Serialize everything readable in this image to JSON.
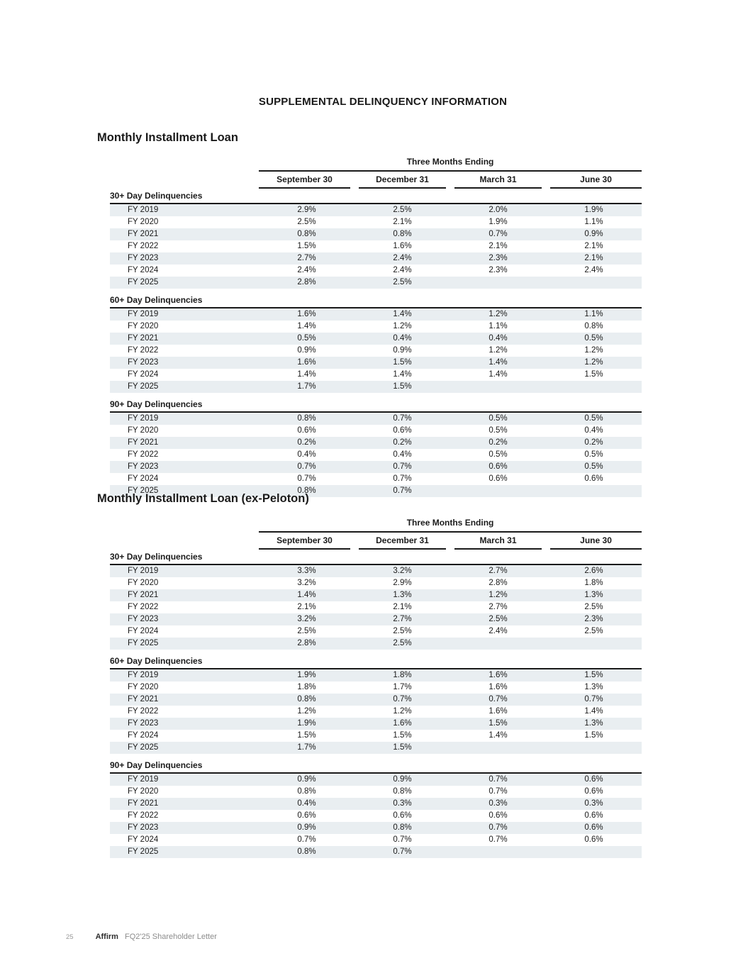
{
  "page": {
    "title": "SUPPLEMENTAL DELINQUENCY INFORMATION"
  },
  "footer": {
    "page_number": "25",
    "brand": "Affirm",
    "document_title": "FQ2'25 Shareholder Letter"
  },
  "columns_header": {
    "group_label": "Three Months Ending",
    "columns": [
      "September 30",
      "December 31",
      "March 31",
      "June 30"
    ]
  },
  "sections": [
    {
      "title": "Monthly Installment Loan",
      "subsections": [
        {
          "label": "30+ Day Delinquencies",
          "rows": [
            {
              "label": "FY 2019",
              "values": [
                "2.9%",
                "2.5%",
                "2.0%",
                "1.9%"
              ]
            },
            {
              "label": "FY 2020",
              "values": [
                "2.5%",
                "2.1%",
                "1.9%",
                "1.1%"
              ]
            },
            {
              "label": "FY 2021",
              "values": [
                "0.8%",
                "0.8%",
                "0.7%",
                "0.9%"
              ]
            },
            {
              "label": "FY 2022",
              "values": [
                "1.5%",
                "1.6%",
                "2.1%",
                "2.1%"
              ]
            },
            {
              "label": "FY 2023",
              "values": [
                "2.7%",
                "2.4%",
                "2.3%",
                "2.1%"
              ]
            },
            {
              "label": "FY 2024",
              "values": [
                "2.4%",
                "2.4%",
                "2.3%",
                "2.4%"
              ]
            },
            {
              "label": "FY 2025",
              "values": [
                "2.8%",
                "2.5%",
                "",
                ""
              ]
            }
          ]
        },
        {
          "label": "60+ Day Delinquencies",
          "rows": [
            {
              "label": "FY 2019",
              "values": [
                "1.6%",
                "1.4%",
                "1.2%",
                "1.1%"
              ]
            },
            {
              "label": "FY 2020",
              "values": [
                "1.4%",
                "1.2%",
                "1.1%",
                "0.8%"
              ]
            },
            {
              "label": "FY 2021",
              "values": [
                "0.5%",
                "0.4%",
                "0.4%",
                "0.5%"
              ]
            },
            {
              "label": "FY 2022",
              "values": [
                "0.9%",
                "0.9%",
                "1.2%",
                "1.2%"
              ]
            },
            {
              "label": "FY 2023",
              "values": [
                "1.6%",
                "1.5%",
                "1.4%",
                "1.2%"
              ]
            },
            {
              "label": "FY 2024",
              "values": [
                "1.4%",
                "1.4%",
                "1.4%",
                "1.5%"
              ]
            },
            {
              "label": "FY 2025",
              "values": [
                "1.7%",
                "1.5%",
                "",
                ""
              ]
            }
          ]
        },
        {
          "label": "90+ Day Delinquencies",
          "rows": [
            {
              "label": "FY 2019",
              "values": [
                "0.8%",
                "0.7%",
                "0.5%",
                "0.5%"
              ]
            },
            {
              "label": "FY 2020",
              "values": [
                "0.6%",
                "0.6%",
                "0.5%",
                "0.4%"
              ]
            },
            {
              "label": "FY 2021",
              "values": [
                "0.2%",
                "0.2%",
                "0.2%",
                "0.2%"
              ]
            },
            {
              "label": "FY 2022",
              "values": [
                "0.4%",
                "0.4%",
                "0.5%",
                "0.5%"
              ]
            },
            {
              "label": "FY 2023",
              "values": [
                "0.7%",
                "0.7%",
                "0.6%",
                "0.5%"
              ]
            },
            {
              "label": "FY 2024",
              "values": [
                "0.7%",
                "0.7%",
                "0.6%",
                "0.6%"
              ]
            },
            {
              "label": "FY 2025",
              "values": [
                "0.8%",
                "0.7%",
                "",
                ""
              ]
            }
          ]
        }
      ]
    },
    {
      "title": "Monthly Installment Loan (ex-Peloton)",
      "subsections": [
        {
          "label": "30+ Day Delinquencies",
          "rows": [
            {
              "label": "FY 2019",
              "values": [
                "3.3%",
                "3.2%",
                "2.7%",
                "2.6%"
              ]
            },
            {
              "label": "FY 2020",
              "values": [
                "3.2%",
                "2.9%",
                "2.8%",
                "1.8%"
              ]
            },
            {
              "label": "FY 2021",
              "values": [
                "1.4%",
                "1.3%",
                "1.2%",
                "1.3%"
              ]
            },
            {
              "label": "FY 2022",
              "values": [
                "2.1%",
                "2.1%",
                "2.7%",
                "2.5%"
              ]
            },
            {
              "label": "FY 2023",
              "values": [
                "3.2%",
                "2.7%",
                "2.5%",
                "2.3%"
              ]
            },
            {
              "label": "FY 2024",
              "values": [
                "2.5%",
                "2.5%",
                "2.4%",
                "2.5%"
              ]
            },
            {
              "label": "FY 2025",
              "values": [
                "2.8%",
                "2.5%",
                "",
                ""
              ]
            }
          ]
        },
        {
          "label": "60+ Day Delinquencies",
          "rows": [
            {
              "label": "FY 2019",
              "values": [
                "1.9%",
                "1.8%",
                "1.6%",
                "1.5%"
              ]
            },
            {
              "label": "FY 2020",
              "values": [
                "1.8%",
                "1.7%",
                "1.6%",
                "1.3%"
              ]
            },
            {
              "label": "FY 2021",
              "values": [
                "0.8%",
                "0.7%",
                "0.7%",
                "0.7%"
              ]
            },
            {
              "label": "FY 2022",
              "values": [
                "1.2%",
                "1.2%",
                "1.6%",
                "1.4%"
              ]
            },
            {
              "label": "FY 2023",
              "values": [
                "1.9%",
                "1.6%",
                "1.5%",
                "1.3%"
              ]
            },
            {
              "label": "FY 2024",
              "values": [
                "1.5%",
                "1.5%",
                "1.4%",
                "1.5%"
              ]
            },
            {
              "label": "FY 2025",
              "values": [
                "1.7%",
                "1.5%",
                "",
                ""
              ]
            }
          ]
        },
        {
          "label": "90+ Day Delinquencies",
          "rows": [
            {
              "label": "FY 2019",
              "values": [
                "0.9%",
                "0.9%",
                "0.7%",
                "0.6%"
              ]
            },
            {
              "label": "FY 2020",
              "values": [
                "0.8%",
                "0.8%",
                "0.7%",
                "0.6%"
              ]
            },
            {
              "label": "FY 2021",
              "values": [
                "0.4%",
                "0.3%",
                "0.3%",
                "0.3%"
              ]
            },
            {
              "label": "FY 2022",
              "values": [
                "0.6%",
                "0.6%",
                "0.6%",
                "0.6%"
              ]
            },
            {
              "label": "FY 2023",
              "values": [
                "0.9%",
                "0.8%",
                "0.7%",
                "0.6%"
              ]
            },
            {
              "label": "FY 2024",
              "values": [
                "0.7%",
                "0.7%",
                "0.7%",
                "0.6%"
              ]
            },
            {
              "label": "FY 2025",
              "values": [
                "0.8%",
                "0.7%",
                "",
                ""
              ]
            }
          ]
        }
      ]
    }
  ],
  "colors": {
    "row_stripe": "#e9eef1",
    "text": "#1a1a1a",
    "rule": "#1a1a1a",
    "footer_gray": "#8c8c8c"
  }
}
